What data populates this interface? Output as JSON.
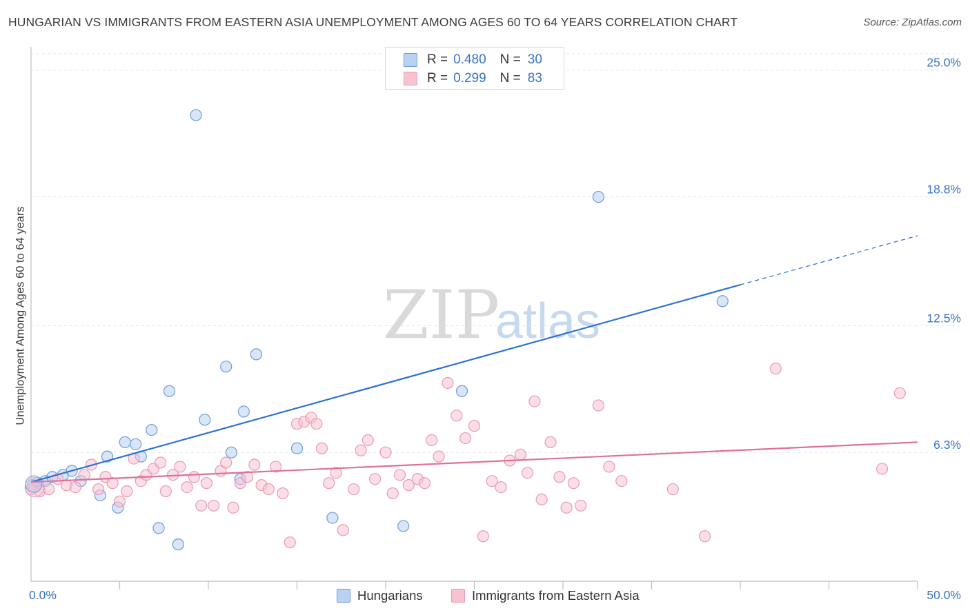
{
  "header": {
    "title": "HUNGARIAN VS IMMIGRANTS FROM EASTERN ASIA UNEMPLOYMENT AMONG AGES 60 TO 64 YEARS CORRELATION CHART",
    "source": "Source: ZipAtlas.com"
  },
  "colors": {
    "blue_fill": "#b9d2f1",
    "blue_stroke": "#6f9bd8",
    "blue_line": "#2a72d1",
    "pink_fill": "#f7c3d1",
    "pink_stroke": "#e99ab2",
    "pink_line": "#e0709a",
    "tick_text": "#3a73c4"
  },
  "stats_legend": {
    "rows": [
      {
        "r_label": "R =",
        "r_value": "0.480",
        "n_label": "N =",
        "n_value": "30"
      },
      {
        "r_label": "R =",
        "r_value": "0.299",
        "n_label": "N =",
        "n_value": "83"
      }
    ]
  },
  "watermark": {
    "zip": "ZIP",
    "atlas": "atlas"
  },
  "bottom_legend": {
    "items": [
      {
        "label": "Hungarians"
      },
      {
        "label": "Immigrants from Eastern Asia"
      }
    ]
  },
  "chart_data": {
    "type": "scatter",
    "title": "HUNGARIAN VS IMMIGRANTS FROM EASTERN ASIA UNEMPLOYMENT AMONG AGES 60 TO 64 YEARS CORRELATION CHART",
    "xlabel": "",
    "ylabel": "Unemployment Among Ages 60 to 64 years",
    "xlim": [
      0,
      50
    ],
    "ylim": [
      0,
      25.8
    ],
    "x_tick_labels": [
      {
        "value": 0,
        "label": "0.0%"
      },
      {
        "value": 50,
        "label": "50.0%"
      }
    ],
    "y_tick_labels": [
      {
        "value": 6.3,
        "label": "6.3%"
      },
      {
        "value": 12.5,
        "label": "12.5%"
      },
      {
        "value": 18.8,
        "label": "18.8%"
      },
      {
        "value": 25.0,
        "label": "25.0%"
      }
    ],
    "series": [
      {
        "name": "Hungarians",
        "color": "blue",
        "trend": {
          "x0": 0,
          "y0": 4.85,
          "x1": 40,
          "y1": 14.5,
          "dash_to_x": 50,
          "dash_to_y": 16.9
        },
        "points": [
          [
            0.1,
            4.7
          ],
          [
            0.4,
            4.8
          ],
          [
            0.8,
            4.9
          ],
          [
            1.2,
            5.1
          ],
          [
            1.8,
            5.2
          ],
          [
            2.3,
            5.4
          ],
          [
            2.8,
            4.9
          ],
          [
            3.9,
            4.2
          ],
          [
            4.3,
            6.1
          ],
          [
            4.9,
            3.6
          ],
          [
            5.3,
            6.8
          ],
          [
            5.9,
            6.7
          ],
          [
            6.2,
            6.1
          ],
          [
            6.8,
            7.4
          ],
          [
            7.2,
            2.6
          ],
          [
            7.8,
            9.3
          ],
          [
            8.3,
            1.8
          ],
          [
            9.3,
            22.8
          ],
          [
            9.8,
            7.9
          ],
          [
            11.0,
            10.5
          ],
          [
            11.3,
            6.3
          ],
          [
            11.8,
            5.0
          ],
          [
            12.0,
            8.3
          ],
          [
            12.7,
            11.1
          ],
          [
            15.0,
            6.5
          ],
          [
            17.0,
            3.1
          ],
          [
            24.3,
            9.3
          ],
          [
            21.0,
            2.7
          ],
          [
            32.0,
            18.8
          ],
          [
            39.0,
            13.7
          ]
        ]
      },
      {
        "name": "Immigrants from Eastern Asia",
        "color": "pink",
        "trend": {
          "x0": 0,
          "y0": 4.85,
          "x1": 50,
          "y1": 6.8
        },
        "points": [
          [
            0.2,
            4.6
          ],
          [
            0.5,
            4.4
          ],
          [
            1.0,
            4.5
          ],
          [
            1.5,
            5.0
          ],
          [
            2.0,
            4.7
          ],
          [
            2.5,
            4.6
          ],
          [
            3.0,
            5.2
          ],
          [
            3.4,
            5.7
          ],
          [
            3.8,
            4.5
          ],
          [
            4.2,
            5.1
          ],
          [
            4.6,
            4.8
          ],
          [
            5.0,
            3.9
          ],
          [
            5.4,
            4.4
          ],
          [
            5.8,
            6.0
          ],
          [
            6.2,
            4.9
          ],
          [
            6.5,
            5.2
          ],
          [
            6.9,
            5.5
          ],
          [
            7.3,
            5.8
          ],
          [
            7.6,
            4.4
          ],
          [
            8.0,
            5.2
          ],
          [
            8.4,
            5.6
          ],
          [
            8.8,
            4.6
          ],
          [
            9.2,
            5.1
          ],
          [
            9.6,
            3.7
          ],
          [
            9.9,
            4.8
          ],
          [
            10.3,
            3.7
          ],
          [
            10.7,
            5.4
          ],
          [
            11.0,
            5.8
          ],
          [
            11.4,
            3.6
          ],
          [
            11.8,
            4.8
          ],
          [
            12.2,
            5.1
          ],
          [
            12.6,
            5.7
          ],
          [
            13.0,
            4.7
          ],
          [
            13.4,
            4.5
          ],
          [
            13.8,
            5.6
          ],
          [
            14.2,
            4.3
          ],
          [
            14.6,
            1.9
          ],
          [
            15.0,
            7.7
          ],
          [
            15.4,
            7.8
          ],
          [
            15.8,
            8.0
          ],
          [
            16.1,
            7.7
          ],
          [
            16.4,
            6.5
          ],
          [
            16.8,
            4.8
          ],
          [
            17.2,
            5.3
          ],
          [
            17.6,
            2.5
          ],
          [
            18.2,
            4.5
          ],
          [
            18.6,
            6.4
          ],
          [
            19.0,
            6.9
          ],
          [
            19.4,
            5.0
          ],
          [
            20.0,
            6.3
          ],
          [
            20.4,
            4.3
          ],
          [
            20.8,
            5.2
          ],
          [
            21.3,
            4.7
          ],
          [
            21.8,
            5.0
          ],
          [
            22.2,
            4.8
          ],
          [
            22.6,
            6.9
          ],
          [
            23.0,
            6.1
          ],
          [
            23.5,
            9.7
          ],
          [
            24.0,
            8.1
          ],
          [
            24.5,
            7.0
          ],
          [
            25.0,
            7.6
          ],
          [
            25.5,
            2.2
          ],
          [
            26.0,
            4.9
          ],
          [
            26.5,
            4.6
          ],
          [
            27.0,
            5.9
          ],
          [
            27.6,
            6.2
          ],
          [
            28.0,
            5.3
          ],
          [
            28.4,
            8.8
          ],
          [
            28.8,
            4.0
          ],
          [
            29.3,
            6.8
          ],
          [
            29.8,
            5.1
          ],
          [
            30.2,
            3.6
          ],
          [
            30.6,
            4.8
          ],
          [
            31.0,
            3.7
          ],
          [
            32.0,
            8.6
          ],
          [
            32.6,
            5.6
          ],
          [
            33.3,
            4.9
          ],
          [
            36.2,
            4.5
          ],
          [
            38.0,
            2.2
          ],
          [
            42.0,
            10.4
          ],
          [
            49.0,
            9.2
          ],
          [
            48.0,
            5.5
          ],
          [
            0.0,
            4.5
          ]
        ]
      }
    ]
  }
}
